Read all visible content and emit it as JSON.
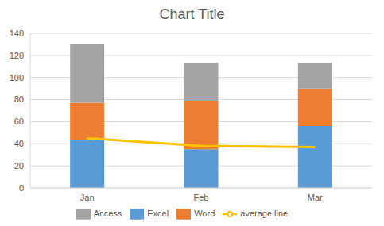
{
  "chart_data": {
    "type": "bar",
    "title": "Chart Title",
    "stacked": true,
    "grid": true,
    "legend": "bottom",
    "categories": [
      "Jan",
      "Feb",
      "Mar"
    ],
    "ylim": [
      0,
      140
    ],
    "yticks": [
      0,
      20,
      40,
      60,
      80,
      100,
      120,
      140
    ],
    "series": [
      {
        "name": "Excel",
        "color": "#5b9bd5",
        "values": [
          43,
          35,
          56
        ]
      },
      {
        "name": "Word",
        "color": "#ed7d31",
        "values": [
          34,
          44,
          34
        ]
      },
      {
        "name": "Access",
        "color": "#a5a5a5",
        "values": [
          53,
          34,
          23
        ]
      },
      {
        "name": "average line",
        "type": "line",
        "color": "#ffc000",
        "values": [
          45,
          38,
          37
        ]
      }
    ]
  }
}
